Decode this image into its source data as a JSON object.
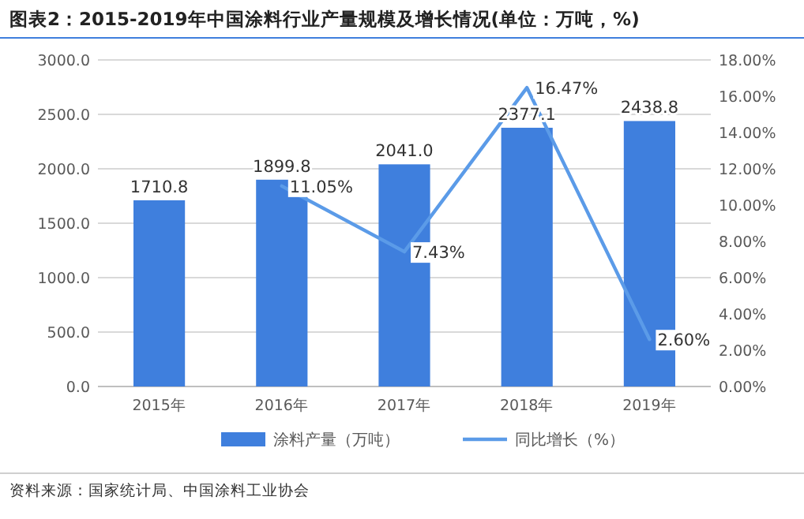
{
  "chart_data": {
    "type": "bar",
    "title": "图表2：2015-2019年中国涂料行业产量规模及增长情况(单位：万吨，%)",
    "categories": [
      "2015年",
      "2016年",
      "2017年",
      "2018年",
      "2019年"
    ],
    "series": [
      {
        "name": "涂料产量（万吨）",
        "color": "#3f7fdd",
        "values": [
          1710.8,
          1899.8,
          2041.0,
          2377.1,
          2438.8
        ],
        "value_labels": [
          "1710.8",
          "1899.8",
          "2041.0",
          "2377.1",
          "2438.8"
        ]
      },
      {
        "name": "同比增长（%）",
        "type": "line",
        "axis": "y2",
        "color": "#5b9be8",
        "values": [
          null,
          11.05,
          7.43,
          16.47,
          2.6
        ],
        "value_labels": [
          null,
          "11.05%",
          "7.43%",
          "16.47%",
          "2.60%"
        ]
      }
    ],
    "ylim": [
      0,
      3000
    ],
    "yticks": [
      {
        "value": 0,
        "label": "0.0"
      },
      {
        "value": 500,
        "label": "500.0"
      },
      {
        "value": 1000,
        "label": "1000.0"
      },
      {
        "value": 1500,
        "label": "1500.0"
      },
      {
        "value": 2000,
        "label": "2000.0"
      },
      {
        "value": 2500,
        "label": "2500.0"
      },
      {
        "value": 3000,
        "label": "3000.0"
      }
    ],
    "y2lim": [
      0,
      18
    ],
    "y2ticks": [
      {
        "value": 0,
        "label": "0.00%"
      },
      {
        "value": 2,
        "label": "2.00%"
      },
      {
        "value": 4,
        "label": "4.00%"
      },
      {
        "value": 6,
        "label": "6.00%"
      },
      {
        "value": 8,
        "label": "8.00%"
      },
      {
        "value": 10,
        "label": "10.00%"
      },
      {
        "value": 12,
        "label": "12.00%"
      },
      {
        "value": 14,
        "label": "14.00%"
      },
      {
        "value": 16,
        "label": "16.00%"
      },
      {
        "value": 18,
        "label": "18.00%"
      }
    ],
    "grid": "y",
    "legend": "bottom",
    "marker": "none",
    "line_style": "solid",
    "annotations": [
      "资料来源：国家统计局、中国涂料工业协会"
    ]
  }
}
